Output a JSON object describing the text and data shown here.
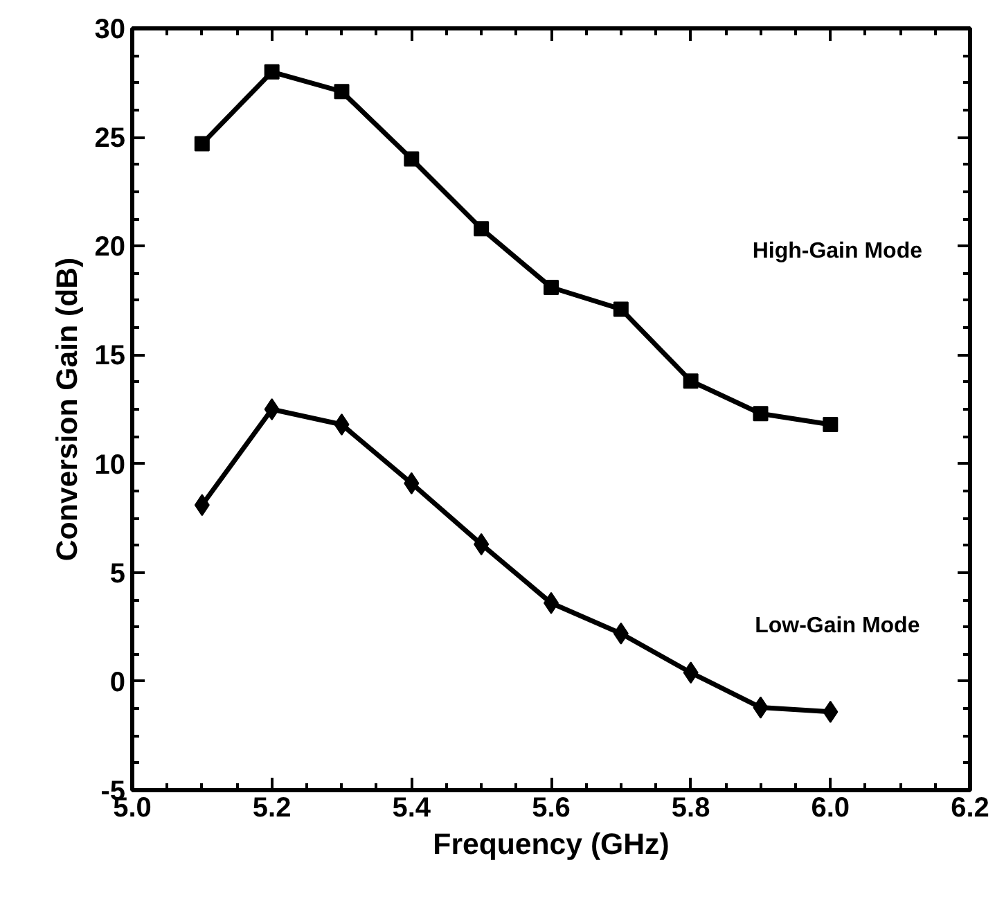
{
  "chart_data": {
    "type": "line",
    "xlabel": "Frequency (GHz)",
    "ylabel": "Conversion Gain (dB)",
    "x": [
      5.1,
      5.2,
      5.3,
      5.4,
      5.5,
      5.6,
      5.7,
      5.8,
      5.9,
      6.0
    ],
    "series": [
      {
        "name": "High-Gain Mode",
        "color": "#000000",
        "marker": "square",
        "values": [
          24.7,
          28.0,
          27.1,
          24.0,
          20.8,
          18.1,
          17.1,
          13.8,
          12.3,
          11.8
        ]
      },
      {
        "name": "Low-Gain Mode",
        "color": "#000000",
        "marker": "diamond",
        "values": [
          8.1,
          12.5,
          11.8,
          9.1,
          6.3,
          3.6,
          2.2,
          0.4,
          -1.2,
          -1.4
        ]
      }
    ],
    "xlim": [
      5.0,
      6.2
    ],
    "xticks": [
      {
        "value": 5.0,
        "label": "5.0"
      },
      5.2,
      5.4,
      5.6,
      5.8,
      {
        "value": 6.0,
        "label": "6.0"
      },
      6.2
    ],
    "ylim": [
      -5,
      30
    ],
    "yticks": [
      -5,
      0,
      5,
      10,
      15,
      20,
      25,
      30
    ],
    "grid": false,
    "legend": "right",
    "line_style": "solid"
  }
}
